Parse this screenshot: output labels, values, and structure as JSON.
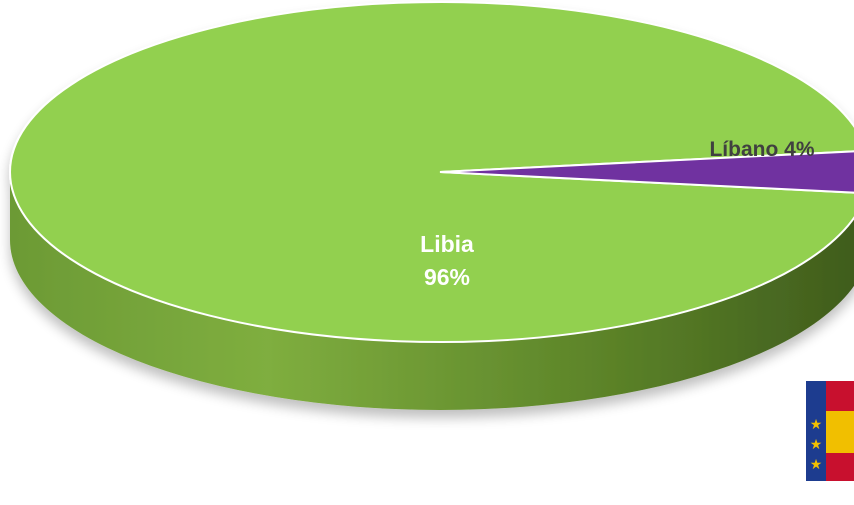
{
  "chart_data": {
    "type": "pie",
    "style": "3d",
    "title": "",
    "categories": [
      "Libia",
      "Líbano"
    ],
    "values": [
      96,
      4
    ],
    "labels": [
      {
        "name": "Libia",
        "value": "96%"
      },
      {
        "name": "Líbano",
        "value": "4%"
      }
    ],
    "colors": [
      "#92d050",
      "#7030a0"
    ],
    "legend": "none",
    "label_colors": [
      "#ffffff",
      "#404040"
    ]
  },
  "decor": {
    "flag_icon": "spain-eu-flag-icon"
  }
}
